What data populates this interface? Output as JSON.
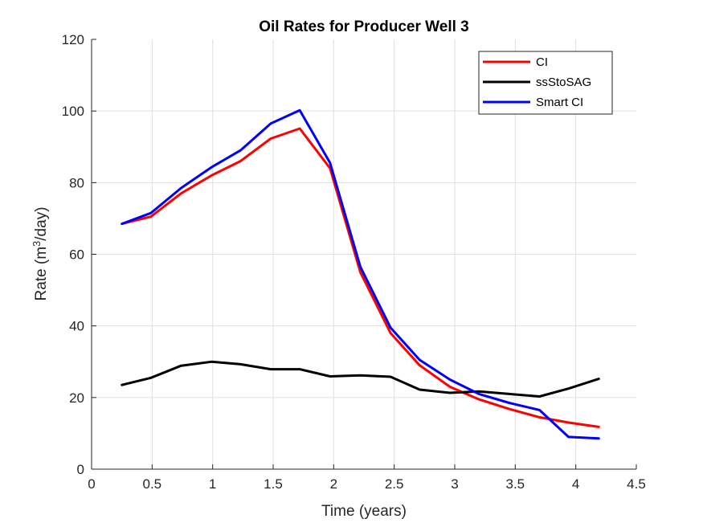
{
  "chart_data": {
    "type": "line",
    "title": "Oil Rates for Producer Well 3",
    "xlabel": "Time (years)",
    "ylabel_parts": {
      "prefix": "Rate (m",
      "sup": "3",
      "suffix": "/day)"
    },
    "xlim": [
      0,
      4.5
    ],
    "ylim": [
      0,
      120
    ],
    "xticks": [
      0,
      0.5,
      1,
      1.5,
      2,
      2.5,
      3,
      3.5,
      4,
      4.5
    ],
    "xtick_labels": [
      "0",
      "0.5",
      "1",
      "1.5",
      "2",
      "2.5",
      "3",
      "3.5",
      "4",
      "4.5"
    ],
    "yticks": [
      0,
      20,
      40,
      60,
      80,
      100,
      120
    ],
    "ytick_labels": [
      "0",
      "20",
      "40",
      "60",
      "80",
      "100",
      "120"
    ],
    "grid": true,
    "legend_position": "top-right",
    "x": [
      0.25,
      0.49,
      0.74,
      0.99,
      1.23,
      1.48,
      1.72,
      1.97,
      2.22,
      2.47,
      2.71,
      2.96,
      3.2,
      3.45,
      3.7,
      3.94,
      4.19
    ],
    "series": [
      {
        "name": "CI",
        "color": "#ff0000",
        "values": [
          68.5,
          70.5,
          77,
          82,
          86,
          92.3,
          95.1,
          84,
          55,
          38,
          29,
          23,
          19.5,
          16.8,
          14.5,
          13,
          11.8
        ]
      },
      {
        "name": "ssStoSAG",
        "color": "#000000",
        "values": [
          23.5,
          25.5,
          28.9,
          30,
          29.3,
          27.9,
          27.9,
          25.9,
          26.2,
          25.8,
          22.2,
          21.3,
          21.7,
          21,
          20.3,
          22.5,
          25.2
        ]
      },
      {
        "name": "Smart CI",
        "color": "#0000ff",
        "values": [
          68.5,
          71.5,
          78.5,
          84.3,
          89,
          96.5,
          100.2,
          85.5,
          56.5,
          39.5,
          30.5,
          25,
          21,
          18.5,
          16.5,
          9,
          8.6
        ]
      }
    ]
  }
}
